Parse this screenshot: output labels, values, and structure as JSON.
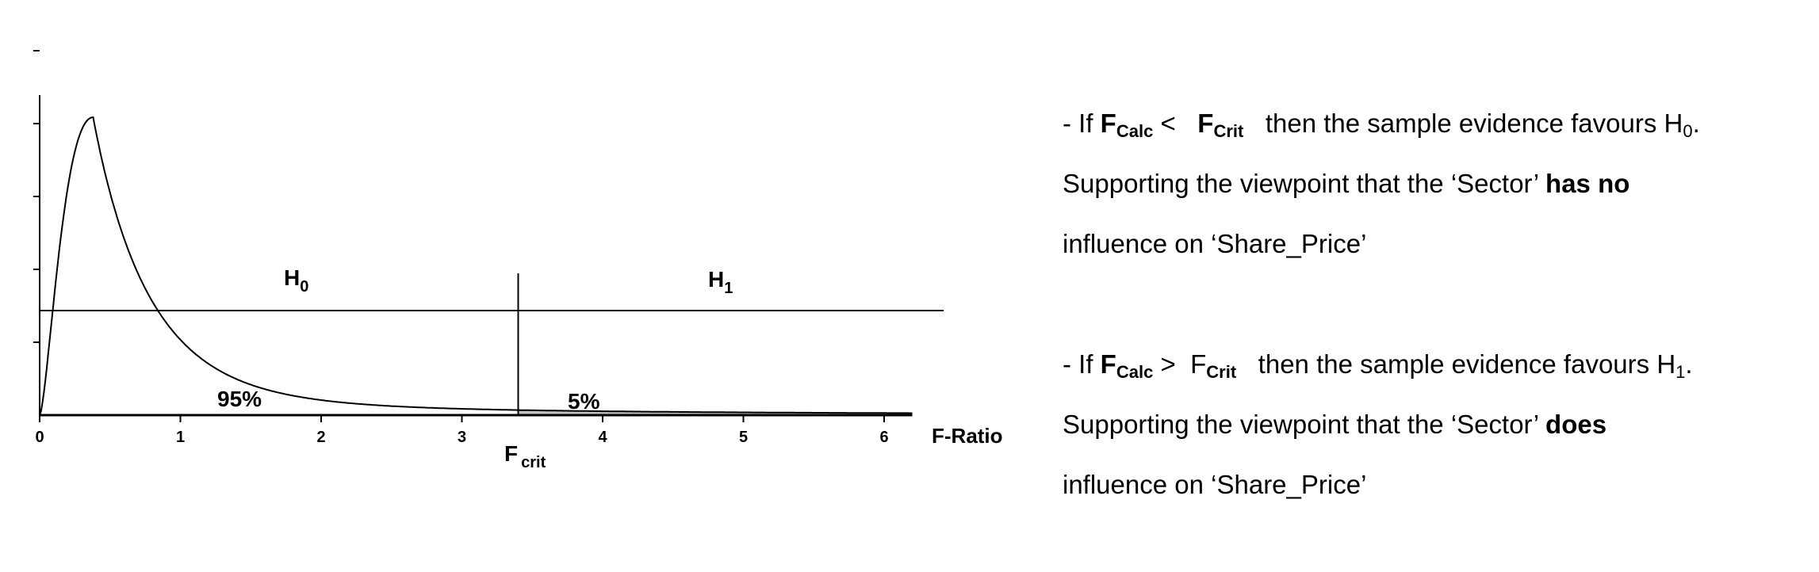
{
  "chart_data": {
    "type": "line",
    "title": "",
    "xlabel": "F-Ratio",
    "ylabel": "",
    "xlim": [
      0,
      6.2
    ],
    "x_ticks": [
      "0",
      "1",
      "2",
      "3",
      "4",
      "5",
      "6"
    ],
    "y_tick_count": 5,
    "grid": false,
    "f_crit": 3.4,
    "critical_label": {
      "main": "F",
      "sub": "crit"
    },
    "regions": [
      {
        "label": "H",
        "sub": "0",
        "percent": "95%"
      },
      {
        "label": "H",
        "sub": "1",
        "percent": "5%"
      }
    ],
    "shading_color": "#c0c0c0",
    "curve_color": "#000000"
  },
  "text_panel": {
    "block1": {
      "line1": {
        "prefix": "- If ",
        "f1": "F",
        "f1_sub": "Calc",
        "op": " <   ",
        "f2": "F",
        "f2_sub": "Crit",
        "mid": "   then the sample evidence favours H",
        "h_sub": "0",
        "end": "."
      },
      "line2": {
        "text": "Supporting the viewpoint that the ‘Sector’ ",
        "bold": "has no"
      },
      "line3": {
        "text": "influence on ‘Share_Price’"
      }
    },
    "block2": {
      "line1": {
        "prefix": "- If ",
        "f1": "F",
        "f1_sub": "Calc",
        "op": " >  ",
        "f2": "F",
        "f2_sub": "Crit",
        "mid": "   then the sample evidence favours H",
        "h_sub": "1",
        "end": "."
      },
      "line2": {
        "text": "Supporting the viewpoint that the ‘Sector’ ",
        "bold": "does"
      },
      "line3": {
        "text": "influence on ‘Share_Price’"
      }
    }
  }
}
